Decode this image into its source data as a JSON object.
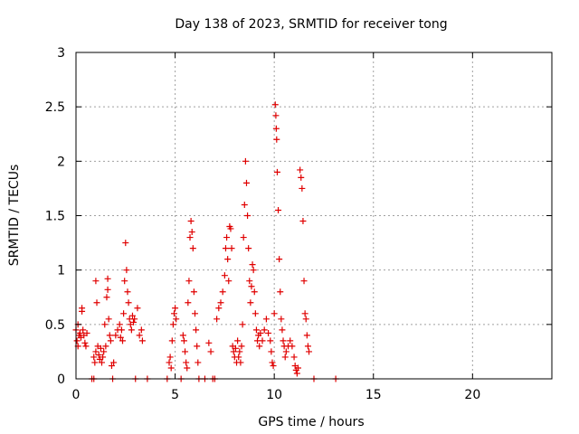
{
  "chart_data": {
    "type": "scatter",
    "title": "Day 138 of 2023, SRMTID for receiver tong",
    "xlabel": "GPS time / hours",
    "ylabel": "SRMTID / TECUs",
    "xlim": [
      0,
      24
    ],
    "ylim": [
      0,
      3
    ],
    "xticks": [
      0,
      5,
      10,
      15,
      20
    ],
    "xtick_labels": [
      "0",
      "5",
      "10",
      "15",
      "20"
    ],
    "yticks": [
      0,
      0.5,
      1,
      1.5,
      2,
      2.5,
      3
    ],
    "ytick_labels": [
      "0",
      "0.5",
      "1",
      "1.5",
      "2",
      "2.5",
      "3"
    ],
    "grid": true,
    "marker": "+",
    "color": "#e00000",
    "series": [
      {
        "name": "SRMTID",
        "points": [
          [
            0.0,
            0.45
          ],
          [
            0.05,
            0.35
          ],
          [
            0.1,
            0.3
          ],
          [
            0.1,
            0.5
          ],
          [
            0.15,
            0.4
          ],
          [
            0.2,
            0.42
          ],
          [
            0.25,
            0.38
          ],
          [
            0.3,
            0.65
          ],
          [
            0.3,
            0.62
          ],
          [
            0.35,
            0.45
          ],
          [
            0.4,
            0.4
          ],
          [
            0.45,
            0.33
          ],
          [
            0.5,
            0.3
          ],
          [
            0.55,
            0.42
          ],
          [
            0.8,
            0.0
          ],
          [
            0.9,
            0.0
          ],
          [
            0.9,
            0.2
          ],
          [
            0.95,
            0.15
          ],
          [
            1.0,
            0.25
          ],
          [
            1.0,
            0.9
          ],
          [
            1.05,
            0.7
          ],
          [
            1.1,
            0.3
          ],
          [
            1.15,
            0.22
          ],
          [
            1.2,
            0.18
          ],
          [
            1.25,
            0.28
          ],
          [
            1.3,
            0.15
          ],
          [
            1.35,
            0.2
          ],
          [
            1.4,
            0.25
          ],
          [
            1.45,
            0.5
          ],
          [
            1.5,
            0.3
          ],
          [
            1.55,
            0.75
          ],
          [
            1.6,
            0.92
          ],
          [
            1.6,
            0.82
          ],
          [
            1.65,
            0.55
          ],
          [
            1.7,
            0.4
          ],
          [
            1.75,
            0.35
          ],
          [
            1.8,
            0.12
          ],
          [
            1.85,
            0.0
          ],
          [
            1.9,
            0.15
          ],
          [
            2.0,
            0.4
          ],
          [
            2.1,
            0.45
          ],
          [
            2.2,
            0.5
          ],
          [
            2.25,
            0.38
          ],
          [
            2.3,
            0.45
          ],
          [
            2.35,
            0.35
          ],
          [
            2.4,
            0.6
          ],
          [
            2.45,
            0.9
          ],
          [
            2.5,
            1.25
          ],
          [
            2.55,
            1.0
          ],
          [
            2.6,
            0.8
          ],
          [
            2.65,
            0.7
          ],
          [
            2.7,
            0.55
          ],
          [
            2.75,
            0.5
          ],
          [
            2.8,
            0.45
          ],
          [
            2.85,
            0.58
          ],
          [
            2.9,
            0.52
          ],
          [
            2.95,
            0.55
          ],
          [
            3.0,
            0.0
          ],
          [
            3.1,
            0.65
          ],
          [
            3.2,
            0.4
          ],
          [
            3.3,
            0.45
          ],
          [
            3.35,
            0.35
          ],
          [
            3.6,
            0.0
          ],
          [
            4.6,
            0.0
          ],
          [
            4.7,
            0.15
          ],
          [
            4.75,
            0.2
          ],
          [
            4.8,
            0.1
          ],
          [
            4.85,
            0.35
          ],
          [
            4.9,
            0.5
          ],
          [
            4.95,
            0.6
          ],
          [
            5.0,
            0.65
          ],
          [
            5.05,
            0.55
          ],
          [
            5.3,
            0.0
          ],
          [
            5.4,
            0.4
          ],
          [
            5.45,
            0.35
          ],
          [
            5.5,
            0.25
          ],
          [
            5.55,
            0.15
          ],
          [
            5.6,
            0.1
          ],
          [
            5.65,
            0.7
          ],
          [
            5.7,
            0.9
          ],
          [
            5.75,
            1.3
          ],
          [
            5.8,
            1.45
          ],
          [
            5.85,
            1.35
          ],
          [
            5.9,
            1.2
          ],
          [
            5.95,
            0.8
          ],
          [
            6.0,
            0.6
          ],
          [
            6.05,
            0.45
          ],
          [
            6.1,
            0.3
          ],
          [
            6.15,
            0.15
          ],
          [
            6.2,
            0.0
          ],
          [
            6.5,
            0.0
          ],
          [
            6.7,
            0.33
          ],
          [
            6.8,
            0.25
          ],
          [
            6.9,
            0.0
          ],
          [
            7.0,
            0.0
          ],
          [
            7.1,
            0.55
          ],
          [
            7.2,
            0.65
          ],
          [
            7.3,
            0.7
          ],
          [
            7.4,
            0.8
          ],
          [
            7.5,
            0.95
          ],
          [
            7.55,
            1.2
          ],
          [
            7.6,
            1.3
          ],
          [
            7.65,
            1.1
          ],
          [
            7.7,
            0.9
          ],
          [
            7.75,
            1.4
          ],
          [
            7.8,
            1.38
          ],
          [
            7.85,
            1.2
          ],
          [
            7.9,
            0.3
          ],
          [
            7.95,
            0.25
          ],
          [
            8.0,
            0.2
          ],
          [
            8.05,
            0.28
          ],
          [
            8.1,
            0.15
          ],
          [
            8.15,
            0.35
          ],
          [
            8.2,
            0.2
          ],
          [
            8.25,
            0.25
          ],
          [
            8.3,
            0.15
          ],
          [
            8.35,
            0.3
          ],
          [
            8.4,
            0.5
          ],
          [
            8.45,
            1.3
          ],
          [
            8.5,
            1.6
          ],
          [
            8.55,
            2.0
          ],
          [
            8.6,
            1.8
          ],
          [
            8.65,
            1.5
          ],
          [
            8.7,
            1.2
          ],
          [
            8.75,
            0.9
          ],
          [
            8.8,
            0.7
          ],
          [
            8.85,
            0.85
          ],
          [
            8.9,
            1.05
          ],
          [
            8.95,
            1.0
          ],
          [
            9.0,
            0.8
          ],
          [
            9.05,
            0.6
          ],
          [
            9.1,
            0.45
          ],
          [
            9.15,
            0.35
          ],
          [
            9.2,
            0.4
          ],
          [
            9.25,
            0.3
          ],
          [
            9.3,
            0.42
          ],
          [
            9.4,
            0.35
          ],
          [
            9.5,
            0.45
          ],
          [
            9.6,
            0.55
          ],
          [
            9.7,
            0.42
          ],
          [
            9.8,
            0.35
          ],
          [
            9.85,
            0.25
          ],
          [
            9.9,
            0.15
          ],
          [
            9.95,
            0.12
          ],
          [
            10.0,
            0.6
          ],
          [
            10.05,
            2.52
          ],
          [
            10.08,
            2.42
          ],
          [
            10.1,
            2.3
          ],
          [
            10.12,
            2.2
          ],
          [
            10.15,
            1.9
          ],
          [
            10.2,
            1.55
          ],
          [
            10.25,
            1.1
          ],
          [
            10.3,
            0.8
          ],
          [
            10.35,
            0.55
          ],
          [
            10.4,
            0.45
          ],
          [
            10.45,
            0.35
          ],
          [
            10.5,
            0.3
          ],
          [
            10.55,
            0.2
          ],
          [
            10.6,
            0.25
          ],
          [
            10.7,
            0.3
          ],
          [
            10.8,
            0.35
          ],
          [
            10.9,
            0.3
          ],
          [
            11.0,
            0.2
          ],
          [
            11.05,
            0.12
          ],
          [
            11.1,
            0.08
          ],
          [
            11.15,
            0.05
          ],
          [
            11.2,
            0.1
          ],
          [
            11.3,
            1.92
          ],
          [
            11.35,
            1.85
          ],
          [
            11.4,
            1.75
          ],
          [
            11.45,
            1.45
          ],
          [
            11.5,
            0.9
          ],
          [
            11.55,
            0.6
          ],
          [
            11.6,
            0.55
          ],
          [
            11.65,
            0.4
          ],
          [
            11.7,
            0.3
          ],
          [
            11.75,
            0.25
          ],
          [
            12.0,
            0.0
          ],
          [
            13.1,
            0.0
          ]
        ]
      }
    ]
  }
}
